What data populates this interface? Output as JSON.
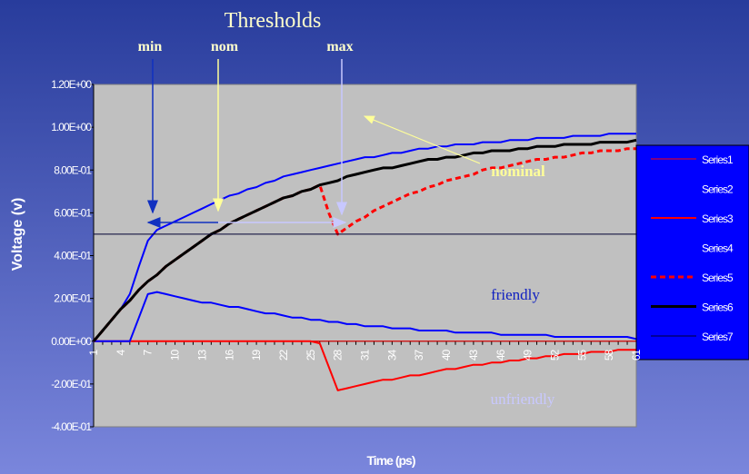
{
  "chart_data": {
    "type": "line",
    "annotations": [
      "Thresholds",
      "min",
      "nom",
      "max",
      "nominal",
      "friendly",
      "unfriendly"
    ],
    "xlabel": "Time (ps)",
    "ylabel": "Voltage (v)",
    "categories": [
      1,
      null,
      null,
      4,
      null,
      null,
      7,
      null,
      null,
      10,
      null,
      null,
      13,
      null,
      null,
      16,
      null,
      null,
      19,
      null,
      null,
      22,
      null,
      null,
      25,
      null,
      null,
      28,
      null,
      null,
      31,
      null,
      null,
      34,
      null,
      null,
      37,
      null,
      null,
      40,
      null,
      null,
      43,
      null,
      null,
      46,
      null,
      null,
      49,
      null,
      null,
      52,
      null,
      null,
      55,
      null,
      null,
      58,
      null,
      null,
      61
    ],
    "ylim": [
      -0.4,
      1.2
    ],
    "yticks": [
      {
        "value": -0.4,
        "label": "-4.00E-01"
      },
      {
        "value": -0.2,
        "label": "-2.00E-01"
      },
      {
        "value": 0,
        "label": "0.00E+00"
      },
      {
        "value": 0.2,
        "label": "2.00E-01"
      },
      {
        "value": 0.4,
        "label": "4.00E-01"
      },
      {
        "value": 0.6,
        "label": "6.00E-01"
      },
      {
        "value": 0.8,
        "label": "8.00E-01"
      },
      {
        "value": 1.0,
        "label": "1.00E+00"
      },
      {
        "value": 1.2,
        "label": "1.20E+00"
      }
    ],
    "grid": false,
    "legend": "right",
    "series": [
      {
        "name": "Series1",
        "color": "#ff0000",
        "line_width": 1,
        "dashed": false,
        "values": [
          0,
          0,
          0,
          0,
          0,
          0,
          0,
          0,
          0,
          0,
          0,
          0,
          0,
          0,
          0,
          0,
          0,
          0,
          0,
          0,
          0,
          0,
          0,
          0,
          0,
          0,
          0,
          0,
          0,
          0,
          0,
          0,
          0,
          0,
          0,
          0,
          0,
          0,
          0,
          0,
          0,
          0,
          0,
          0,
          0,
          0,
          0,
          0,
          0,
          0,
          0,
          0,
          0,
          0,
          0,
          0,
          0,
          0,
          0,
          0,
          0
        ]
      },
      {
        "name": "Series2",
        "color": "#0000ff",
        "line_width": 2,
        "dashed": false,
        "values": [
          0,
          0.05,
          0.1,
          0.15,
          0.22,
          0.35,
          0.47,
          0.52,
          0.54,
          0.56,
          0.58,
          0.6,
          0.62,
          0.64,
          0.66,
          0.68,
          0.69,
          0.71,
          0.72,
          0.74,
          0.75,
          0.77,
          0.78,
          0.79,
          0.8,
          0.81,
          0.82,
          0.83,
          0.84,
          0.85,
          0.86,
          0.86,
          0.87,
          0.88,
          0.88,
          0.89,
          0.9,
          0.9,
          0.91,
          0.91,
          0.92,
          0.92,
          0.92,
          0.93,
          0.93,
          0.93,
          0.94,
          0.94,
          0.94,
          0.95,
          0.95,
          0.95,
          0.95,
          0.96,
          0.96,
          0.96,
          0.96,
          0.97,
          0.97,
          0.97,
          0.97
        ]
      },
      {
        "name": "Series3",
        "color": "#ff0000",
        "line_width": 2,
        "dashed": false,
        "values": [
          0,
          0,
          0,
          0,
          0,
          0,
          0,
          0,
          0,
          0,
          0,
          0,
          0,
          0,
          0,
          0,
          0,
          0,
          0,
          0,
          0,
          0,
          0,
          0,
          0,
          -0.01,
          -0.12,
          -0.23,
          -0.22,
          -0.21,
          -0.2,
          -0.19,
          -0.18,
          -0.18,
          -0.17,
          -0.16,
          -0.16,
          -0.15,
          -0.14,
          -0.13,
          -0.13,
          -0.12,
          -0.11,
          -0.11,
          -0.1,
          -0.1,
          -0.09,
          -0.09,
          -0.08,
          -0.08,
          -0.07,
          -0.07,
          -0.06,
          -0.06,
          -0.06,
          -0.05,
          -0.05,
          -0.05,
          -0.04,
          -0.04,
          -0.04
        ]
      },
      {
        "name": "Series4",
        "color": "#0000ff",
        "line_width": 2,
        "dashed": false,
        "values": [
          0,
          0,
          0,
          0,
          0,
          0.11,
          0.22,
          0.23,
          0.22,
          0.21,
          0.2,
          0.19,
          0.18,
          0.18,
          0.17,
          0.16,
          0.16,
          0.15,
          0.14,
          0.13,
          0.13,
          0.12,
          0.11,
          0.11,
          0.1,
          0.1,
          0.09,
          0.09,
          0.08,
          0.08,
          0.07,
          0.07,
          0.07,
          0.06,
          0.06,
          0.06,
          0.05,
          0.05,
          0.05,
          0.05,
          0.04,
          0.04,
          0.04,
          0.04,
          0.04,
          0.03,
          0.03,
          0.03,
          0.03,
          0.03,
          0.03,
          0.02,
          0.02,
          0.02,
          0.02,
          0.02,
          0.02,
          0.02,
          0.02,
          0.02,
          0.01
        ]
      },
      {
        "name": "Series5",
        "color": "#ff0000",
        "line_width": 3,
        "dashed": true,
        "values": [
          0,
          0.05,
          0.1,
          0.15,
          0.19,
          0.24,
          0.28,
          0.31,
          0.35,
          0.38,
          0.41,
          0.44,
          0.47,
          0.5,
          0.52,
          0.55,
          0.57,
          0.59,
          0.61,
          0.63,
          0.65,
          0.67,
          0.68,
          0.7,
          0.71,
          0.73,
          0.6,
          0.5,
          0.53,
          0.56,
          0.58,
          0.61,
          0.63,
          0.65,
          0.67,
          0.69,
          0.7,
          0.72,
          0.73,
          0.75,
          0.76,
          0.77,
          0.78,
          0.8,
          0.81,
          0.81,
          0.82,
          0.83,
          0.84,
          0.85,
          0.85,
          0.86,
          0.86,
          0.87,
          0.88,
          0.88,
          0.89,
          0.89,
          0.89,
          0.9,
          0.9
        ]
      },
      {
        "name": "Series6",
        "color": "#000000",
        "line_width": 3,
        "dashed": false,
        "values": [
          0,
          0.05,
          0.1,
          0.15,
          0.19,
          0.24,
          0.28,
          0.31,
          0.35,
          0.38,
          0.41,
          0.44,
          0.47,
          0.5,
          0.52,
          0.55,
          0.57,
          0.59,
          0.61,
          0.63,
          0.65,
          0.67,
          0.68,
          0.7,
          0.71,
          0.73,
          0.74,
          0.75,
          0.77,
          0.78,
          0.79,
          0.8,
          0.81,
          0.81,
          0.82,
          0.83,
          0.84,
          0.85,
          0.85,
          0.86,
          0.86,
          0.87,
          0.88,
          0.88,
          0.89,
          0.89,
          0.89,
          0.9,
          0.9,
          0.91,
          0.91,
          0.91,
          0.92,
          0.92,
          0.92,
          0.92,
          0.93,
          0.93,
          0.93,
          0.93,
          0.94
        ]
      },
      {
        "name": "Series7",
        "color": "#000033",
        "line_width": 1,
        "dashed": false,
        "values": [
          0.5,
          0.5,
          0.5,
          0.5,
          0.5,
          0.5,
          0.5,
          0.5,
          0.5,
          0.5,
          0.5,
          0.5,
          0.5,
          0.5,
          0.5,
          0.5,
          0.5,
          0.5,
          0.5,
          0.5,
          0.5,
          0.5,
          0.5,
          0.5,
          0.5,
          0.5,
          0.5,
          0.5,
          0.5,
          0.5,
          0.5,
          0.5,
          0.5,
          0.5,
          0.5,
          0.5,
          0.5,
          0.5,
          0.5,
          0.5,
          0.5,
          0.5,
          0.5,
          0.5,
          0.5,
          0.5,
          0.5,
          0.5,
          0.5,
          0.5,
          0.5,
          0.5,
          0.5,
          0.5,
          0.5,
          0.5,
          0.5,
          0.5,
          0.5,
          0.5,
          0.5
        ]
      }
    ]
  }
}
